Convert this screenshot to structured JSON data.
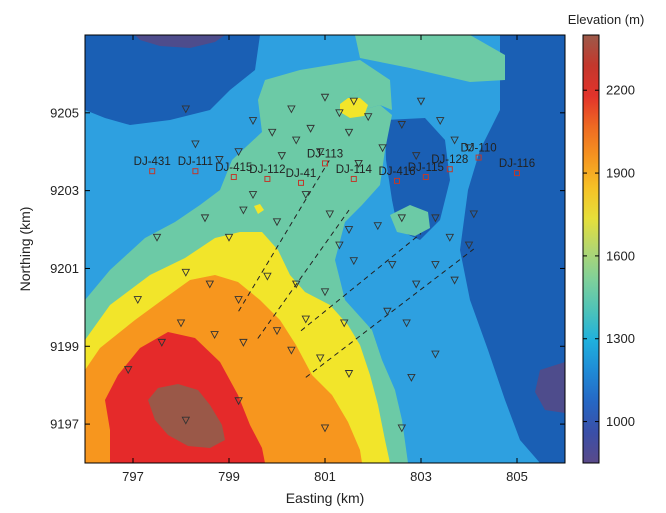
{
  "chart_data": {
    "type": "contour",
    "xlabel": "Easting (km)",
    "ylabel": "Northing (km)",
    "xlim": [
      796,
      806
    ],
    "ylim": [
      9196,
      9207
    ],
    "x_ticks": [
      797,
      799,
      801,
      803,
      805
    ],
    "y_ticks": [
      9197,
      9199,
      9201,
      9203,
      9205
    ],
    "grid": false,
    "colorbar": {
      "label": "Elevation (m)",
      "range": [
        850,
        2400
      ],
      "ticks": [
        1000,
        1300,
        1600,
        1900,
        2200
      ],
      "colors": [
        "#5a4a8a",
        "#3a4fa8",
        "#2667c4",
        "#1f8ad6",
        "#1fb0dd",
        "#4ec3b8",
        "#7fd09a",
        "#b3d670",
        "#e6df3a",
        "#f6c126",
        "#f59520",
        "#ee6a22",
        "#e2332b",
        "#c4372c",
        "#9c5a4a"
      ]
    },
    "contour_fill_colors": {
      "deep_blue": "#1a5fb4",
      "sky_blue": "#2ea0e0",
      "teal": "#6ccaa6",
      "yellow": "#f2e52a",
      "orange": "#f7961e",
      "red": "#e52a2a",
      "brown": "#9a5848",
      "purple": "#4e4c8c"
    },
    "labeled_stations": [
      {
        "name": "DJ-431",
        "x": 797.4,
        "y": 9203.5
      },
      {
        "name": "DJ-111",
        "x": 798.3,
        "y": 9203.5
      },
      {
        "name": "DJ-415",
        "x": 799.1,
        "y": 9203.35
      },
      {
        "name": "DJ-112",
        "x": 799.8,
        "y": 9203.3
      },
      {
        "name": "DJ-41",
        "x": 800.5,
        "y": 9203.2
      },
      {
        "name": "DJ-113",
        "x": 801.0,
        "y": 9203.7
      },
      {
        "name": "DJ-114",
        "x": 801.6,
        "y": 9203.3
      },
      {
        "name": "DJ-416",
        "x": 802.5,
        "y": 9203.25
      },
      {
        "name": "DJ-115",
        "x": 803.1,
        "y": 9203.35
      },
      {
        "name": "DJ-128",
        "x": 803.6,
        "y": 9203.55
      },
      {
        "name": "DJ-110",
        "x": 804.2,
        "y": 9203.85
      },
      {
        "name": "DJ-116",
        "x": 805.0,
        "y": 9203.45
      }
    ],
    "triangle_stations": [
      [
        798.1,
        9205.1
      ],
      [
        798.3,
        9204.2
      ],
      [
        798.8,
        9203.8
      ],
      [
        799.2,
        9204.0
      ],
      [
        799.5,
        9204.8
      ],
      [
        799.9,
        9204.5
      ],
      [
        800.1,
        9203.9
      ],
      [
        800.4,
        9204.3
      ],
      [
        800.7,
        9204.6
      ],
      [
        800.3,
        9205.1
      ],
      [
        801.0,
        9205.4
      ],
      [
        801.3,
        9205.0
      ],
      [
        801.6,
        9205.3
      ],
      [
        800.9,
        9204.0
      ],
      [
        801.5,
        9204.5
      ],
      [
        801.9,
        9204.9
      ],
      [
        802.2,
        9204.1
      ],
      [
        802.6,
        9204.7
      ],
      [
        803.0,
        9205.3
      ],
      [
        803.4,
        9204.8
      ],
      [
        803.7,
        9204.3
      ],
      [
        804.0,
        9204.1
      ],
      [
        802.9,
        9203.9
      ],
      [
        801.7,
        9203.7
      ],
      [
        800.6,
        9202.9
      ],
      [
        799.3,
        9202.5
      ],
      [
        799.5,
        9202.9
      ],
      [
        800.0,
        9202.2
      ],
      [
        801.1,
        9202.4
      ],
      [
        801.5,
        9202.0
      ],
      [
        802.1,
        9202.1
      ],
      [
        802.6,
        9202.3
      ],
      [
        803.3,
        9202.3
      ],
      [
        803.6,
        9201.8
      ],
      [
        804.0,
        9201.6
      ],
      [
        798.5,
        9202.3
      ],
      [
        799.0,
        9201.8
      ],
      [
        797.5,
        9201.8
      ],
      [
        798.1,
        9200.9
      ],
      [
        798.6,
        9200.6
      ],
      [
        799.2,
        9200.2
      ],
      [
        799.8,
        9200.8
      ],
      [
        800.4,
        9200.6
      ],
      [
        801.0,
        9200.4
      ],
      [
        801.6,
        9201.2
      ],
      [
        802.4,
        9201.1
      ],
      [
        802.9,
        9200.6
      ],
      [
        803.3,
        9201.1
      ],
      [
        803.7,
        9200.7
      ],
      [
        802.3,
        9199.9
      ],
      [
        801.4,
        9199.6
      ],
      [
        800.6,
        9199.7
      ],
      [
        800.0,
        9199.4
      ],
      [
        799.3,
        9199.1
      ],
      [
        798.7,
        9199.3
      ],
      [
        798.0,
        9199.6
      ],
      [
        797.6,
        9199.1
      ],
      [
        797.1,
        9200.2
      ],
      [
        800.3,
        9198.9
      ],
      [
        800.9,
        9198.7
      ],
      [
        801.5,
        9198.3
      ],
      [
        802.8,
        9198.2
      ],
      [
        803.3,
        9198.8
      ],
      [
        799.2,
        9197.6
      ],
      [
        798.1,
        9197.1
      ],
      [
        801.0,
        9196.9
      ],
      [
        802.6,
        9196.9
      ],
      [
        796.9,
        9198.4
      ],
      [
        801.3,
        9201.6
      ],
      [
        802.7,
        9199.6
      ],
      [
        804.1,
        9202.4
      ]
    ],
    "dashed_lines": [
      [
        [
          799.2,
          9199.9
        ],
        [
          801.1,
          9203.8
        ]
      ],
      [
        [
          799.6,
          9199.2
        ],
        [
          801.5,
          9202.5
        ]
      ],
      [
        [
          800.5,
          9199.4
        ],
        [
          803.0,
          9201.9
        ]
      ],
      [
        [
          800.6,
          9198.2
        ],
        [
          804.1,
          9201.5
        ]
      ]
    ]
  }
}
